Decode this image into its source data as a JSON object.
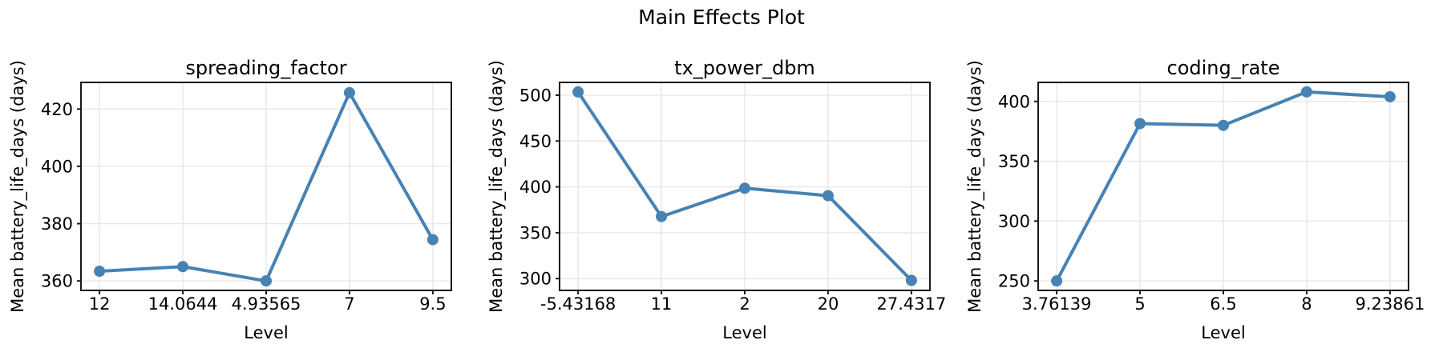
{
  "figure": {
    "title": "Main Effects Plot",
    "xlabel": "Level",
    "ylabel": "Mean battery_life_days (days)"
  },
  "colors": {
    "line": "#4682B4",
    "marker": "#4682B4",
    "grid": "#e7e7e7",
    "spine": "#1a1a1a",
    "text": "#000000",
    "background": "#ffffff"
  },
  "chart_data": [
    {
      "type": "line",
      "title": "spreading_factor",
      "xlabel": "Level",
      "ylabel": "Mean battery_life_days (days)",
      "categories": [
        "12",
        "14.0644",
        "4.93565",
        "7",
        "9.5"
      ],
      "values": [
        363.4,
        365.0,
        360.0,
        425.7,
        374.4
      ],
      "yticks": [
        360,
        380,
        400,
        420
      ],
      "ylim": [
        356.7,
        429.3
      ],
      "grid": true,
      "legend": false,
      "marker": "circle"
    },
    {
      "type": "line",
      "title": "tx_power_dbm",
      "xlabel": "Level",
      "ylabel": "Mean battery_life_days (days)",
      "categories": [
        "-5.43168",
        "11",
        "2",
        "20",
        "27.4317"
      ],
      "values": [
        503.5,
        367.6,
        398.5,
        390.4,
        298.0
      ],
      "yticks": [
        300,
        350,
        400,
        450,
        500
      ],
      "ylim": [
        287.1,
        513.9
      ],
      "grid": true,
      "legend": false,
      "marker": "circle"
    },
    {
      "type": "line",
      "title": "coding_rate",
      "xlabel": "Level",
      "ylabel": "Mean battery_life_days (days)",
      "categories": [
        "3.76139",
        "5",
        "6.5",
        "8",
        "9.23861"
      ],
      "values": [
        250.0,
        381.5,
        380.0,
        408.0,
        403.9
      ],
      "yticks": [
        250,
        300,
        350,
        400
      ],
      "ylim": [
        242.1,
        415.9
      ],
      "grid": true,
      "legend": false,
      "marker": "circle"
    }
  ]
}
